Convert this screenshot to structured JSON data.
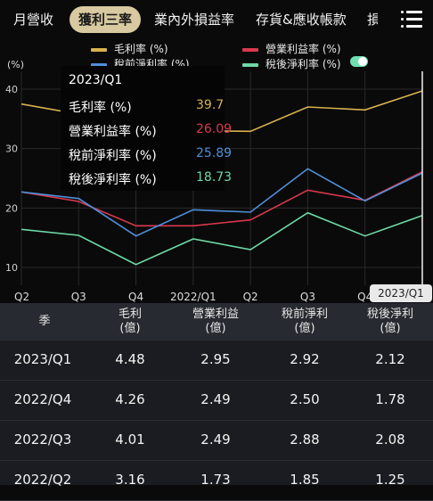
{
  "tabs": [
    {
      "label": "月營收"
    },
    {
      "label": "獲利三率"
    },
    {
      "label": "業內外損益率"
    },
    {
      "label": "存貨&應收帳款"
    },
    {
      "label": "損"
    }
  ],
  "chart": {
    "unit_label": "(%)",
    "legend": [
      {
        "label": "毛利率 (%)",
        "color": "#d8b24e"
      },
      {
        "label": "營業利益率 (%)",
        "color": "#d9384d"
      },
      {
        "label": "稅前淨利率 (%)",
        "color": "#4f8fd9"
      },
      {
        "label": "稅後淨利率 (%)",
        "color": "#6ed8a6"
      }
    ],
    "tooltip": {
      "title": "2023/Q1",
      "rows": [
        {
          "label": "毛利率 (%)",
          "value": "39.7",
          "color": "#d8b24e"
        },
        {
          "label": "營業利益率 (%)",
          "value": "26.09",
          "color": "#d9384d"
        },
        {
          "label": "稅前淨利率 (%)",
          "value": "25.89",
          "color": "#4f8fd9"
        },
        {
          "label": "稅後淨利率 (%)",
          "value": "18.73",
          "color": "#6ed8a6"
        }
      ]
    },
    "selected_period": "2023/Q1"
  },
  "chart_data": {
    "type": "line",
    "x": [
      "Q2",
      "Q3",
      "Q4",
      "2022/Q1",
      "Q2",
      "Q3",
      "Q4",
      "2023/Q1"
    ],
    "y_ticks": [
      10,
      20,
      30,
      40
    ],
    "ylim": [
      7,
      43
    ],
    "ylabel": "(%)",
    "series": [
      {
        "name": "毛利率 (%)",
        "color": "#d8b24e",
        "values": [
          37.5,
          35.8,
          35.3,
          33.0,
          32.9,
          37.0,
          36.5,
          39.7
        ]
      },
      {
        "name": "營業利益率 (%)",
        "color": "#d9384d",
        "values": [
          22.7,
          21.1,
          17.0,
          17.0,
          18.0,
          23.0,
          21.3,
          26.09
        ]
      },
      {
        "name": "稅前淨利率 (%)",
        "color": "#4f8fd9",
        "values": [
          22.7,
          21.6,
          15.3,
          19.7,
          19.3,
          26.6,
          21.2,
          25.89
        ]
      },
      {
        "name": "稅後淨利率 (%)",
        "color": "#6ed8a6",
        "values": [
          16.4,
          15.4,
          10.5,
          14.8,
          13.0,
          19.2,
          15.3,
          18.73
        ]
      }
    ],
    "grid": true,
    "legend": "top"
  },
  "table": {
    "headers": [
      {
        "line1": "季",
        "line2": ""
      },
      {
        "line1": "毛利",
        "line2": "(億)"
      },
      {
        "line1": "營業利益",
        "line2": "(億)"
      },
      {
        "line1": "稅前淨利",
        "line2": "(億)"
      },
      {
        "line1": "稅後淨利",
        "line2": "(億)"
      }
    ],
    "rows": [
      [
        "2023/Q1",
        "4.48",
        "2.95",
        "2.92",
        "2.12"
      ],
      [
        "2022/Q4",
        "4.26",
        "2.49",
        "2.50",
        "1.78"
      ],
      [
        "2022/Q3",
        "4.01",
        "2.49",
        "2.88",
        "2.08"
      ],
      [
        "2022/Q2",
        "3.16",
        "1.73",
        "1.85",
        "1.25"
      ]
    ]
  }
}
